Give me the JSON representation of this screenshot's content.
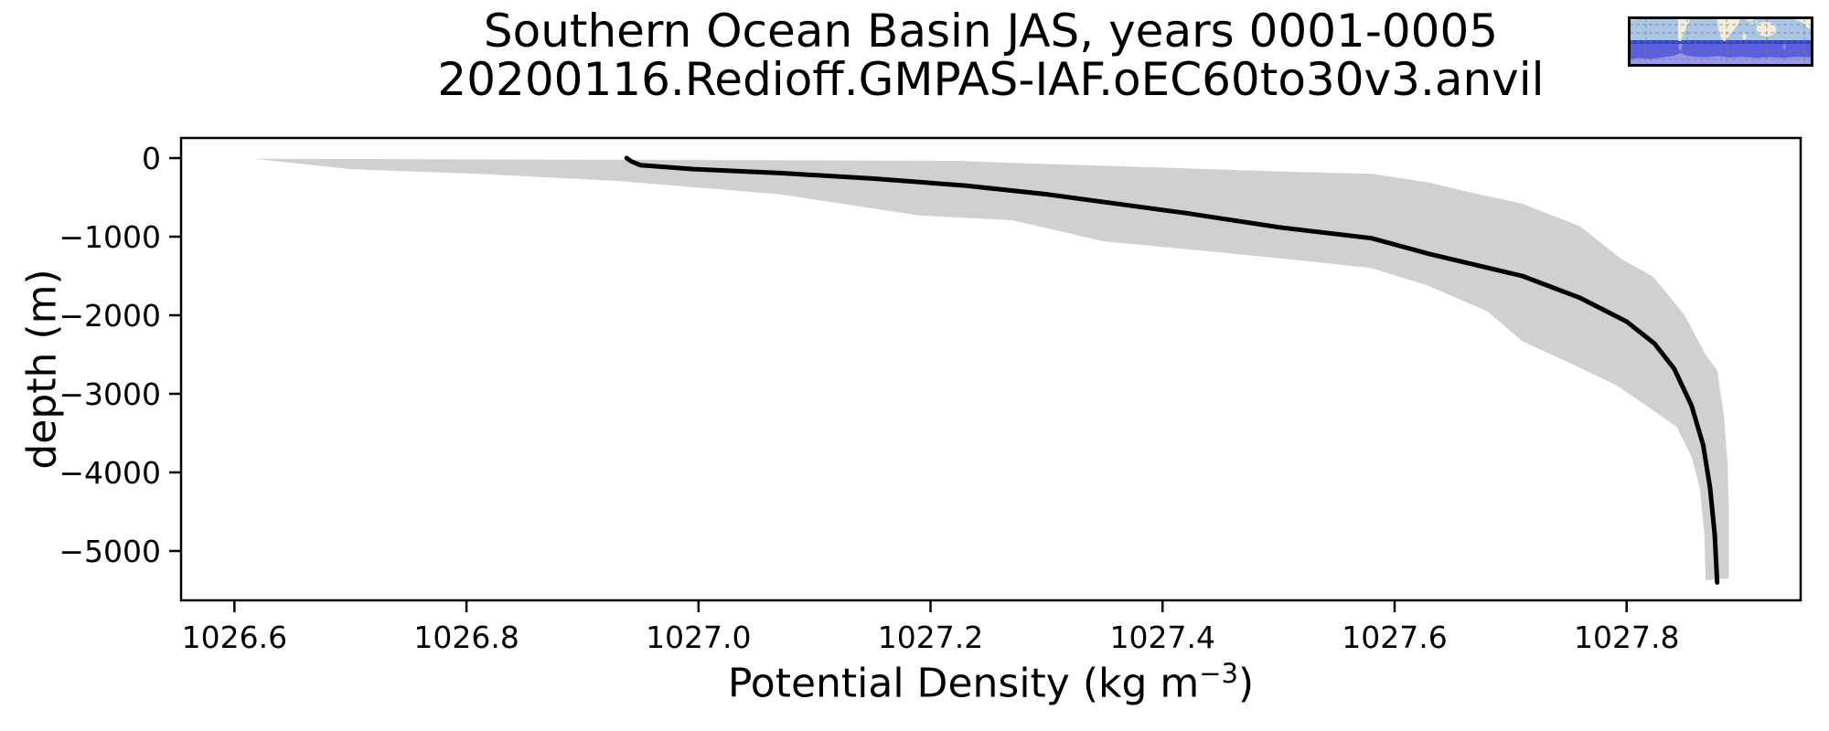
{
  "figure": {
    "title_line1": "Southern Ocean Basin JAS, years 0001-0005",
    "title_line2": "20200116.Redioff.GMPAS-IAF.oEC60to30v3.anvil"
  },
  "axes": {
    "xlabel_prefix": "Potential Density (kg m",
    "xlabel_superscript": "−3",
    "xlabel_suffix": ")",
    "ylabel": "depth (m)"
  },
  "inset_map": {
    "name": "southern-ocean-basin-region-map",
    "colors": {
      "ocean_north": "#a9c5e8",
      "boundary_band": "#2d41d8",
      "region_south": "#5a5fdf",
      "antarctic_shelf": "#9a97e8",
      "land": "#f2eed6",
      "land_south": "#8d8ae8",
      "grid": "#7d7d7d",
      "border": "#000000"
    }
  },
  "chart_data": {
    "type": "line",
    "title": "Southern Ocean Basin JAS, years 0001-0005",
    "subtitle": "20200116.Redioff.GMPAS-IAF.oEC60to30v3.anvil",
    "xlabel": "Potential Density (kg m⁻³)",
    "ylabel": "depth (m)",
    "xlim": [
      1026.554,
      1027.95
    ],
    "ylim": [
      -5628,
      256
    ],
    "grid": false,
    "legend_position": "none",
    "line_color": "#000000",
    "line_width": 5,
    "band_color": "#d0d0d0",
    "xticks": [
      {
        "value": 1026.6,
        "label": "1026.6"
      },
      {
        "value": 1026.8,
        "label": "1026.8"
      },
      {
        "value": 1027.0,
        "label": "1027.0"
      },
      {
        "value": 1027.2,
        "label": "1027.2"
      },
      {
        "value": 1027.4,
        "label": "1027.4"
      },
      {
        "value": 1027.6,
        "label": "1027.6"
      },
      {
        "value": 1027.8,
        "label": "1027.8"
      }
    ],
    "yticks": [
      {
        "value": 0,
        "label": "0"
      },
      {
        "value": -1000,
        "label": "−1000"
      },
      {
        "value": -2000,
        "label": "−2000"
      },
      {
        "value": -3000,
        "label": "−3000"
      },
      {
        "value": -4000,
        "label": "−4000"
      },
      {
        "value": -5000,
        "label": "−5000"
      }
    ],
    "series": [
      {
        "name": "mean_profile",
        "style": "solid-line",
        "points": [
          [
            1026.938,
            0
          ],
          [
            1026.942,
            -40
          ],
          [
            1026.95,
            -90
          ],
          [
            1026.996,
            -140
          ],
          [
            1027.07,
            -190
          ],
          [
            1027.15,
            -260
          ],
          [
            1027.23,
            -350
          ],
          [
            1027.3,
            -460
          ],
          [
            1027.35,
            -560
          ],
          [
            1027.42,
            -700
          ],
          [
            1027.5,
            -880
          ],
          [
            1027.58,
            -1020
          ],
          [
            1027.63,
            -1220
          ],
          [
            1027.71,
            -1500
          ],
          [
            1027.76,
            -1780
          ],
          [
            1027.8,
            -2080
          ],
          [
            1027.824,
            -2360
          ],
          [
            1027.841,
            -2680
          ],
          [
            1027.856,
            -3150
          ],
          [
            1027.866,
            -3650
          ],
          [
            1027.872,
            -4200
          ],
          [
            1027.876,
            -4800
          ],
          [
            1027.878,
            -5400
          ]
        ]
      },
      {
        "name": "range_min",
        "style": "band-edge",
        "points": [
          [
            1026.617,
            -8
          ],
          [
            1026.7,
            -140
          ],
          [
            1026.81,
            -200
          ],
          [
            1026.93,
            -290
          ],
          [
            1027.07,
            -460
          ],
          [
            1027.19,
            -730
          ],
          [
            1027.27,
            -790
          ],
          [
            1027.35,
            -1060
          ],
          [
            1027.45,
            -1200
          ],
          [
            1027.53,
            -1320
          ],
          [
            1027.58,
            -1400
          ],
          [
            1027.628,
            -1620
          ],
          [
            1027.68,
            -1950
          ],
          [
            1027.71,
            -2330
          ],
          [
            1027.75,
            -2600
          ],
          [
            1027.79,
            -2880
          ],
          [
            1027.82,
            -3180
          ],
          [
            1027.843,
            -3420
          ],
          [
            1027.856,
            -3800
          ],
          [
            1027.863,
            -4190
          ],
          [
            1027.867,
            -4780
          ],
          [
            1027.868,
            -5370
          ]
        ]
      },
      {
        "name": "range_max",
        "style": "band-edge",
        "points": [
          [
            1027.225,
            -35
          ],
          [
            1027.268,
            -60
          ],
          [
            1027.42,
            -130
          ],
          [
            1027.5,
            -170
          ],
          [
            1027.58,
            -200
          ],
          [
            1027.63,
            -310
          ],
          [
            1027.66,
            -420
          ],
          [
            1027.71,
            -580
          ],
          [
            1027.76,
            -870
          ],
          [
            1027.795,
            -1280
          ],
          [
            1027.823,
            -1510
          ],
          [
            1027.85,
            -2000
          ],
          [
            1027.868,
            -2500
          ],
          [
            1027.878,
            -2700
          ],
          [
            1027.884,
            -3300
          ],
          [
            1027.887,
            -3900
          ],
          [
            1027.888,
            -4400
          ],
          [
            1027.888,
            -5350
          ]
        ]
      }
    ]
  }
}
